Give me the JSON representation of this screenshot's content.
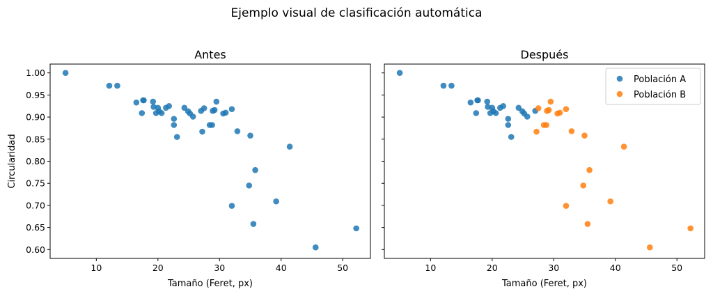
{
  "suptitle": "Ejemplo visual de clasificación automática",
  "colors": {
    "A": "#1f77b4",
    "B": "#ff7f0e"
  },
  "chart_data": [
    {
      "type": "scatter",
      "title": "Antes",
      "xlabel": "Tamaño (Feret, px)",
      "ylabel": "Circularidad",
      "xlim": [
        2.5,
        54.5
      ],
      "ylim": [
        0.58,
        1.02
      ],
      "xticks": [
        10,
        20,
        30,
        40,
        50
      ],
      "yticks": [
        "0.60",
        "0.65",
        "0.70",
        "0.75",
        "0.80",
        "0.85",
        "0.90",
        "0.95",
        "1.00"
      ],
      "grid": false,
      "legend": "none",
      "series": [
        {
          "color": "#1f77b4",
          "points": [
            [
              5.0,
              1.0
            ],
            [
              12.1,
              0.971
            ],
            [
              13.4,
              0.971
            ],
            [
              16.5,
              0.933
            ],
            [
              17.4,
              0.909
            ],
            [
              17.6,
              0.938
            ],
            [
              17.7,
              0.938
            ],
            [
              19.2,
              0.935
            ],
            [
              19.3,
              0.923
            ],
            [
              19.7,
              0.909
            ],
            [
              20.0,
              0.921
            ],
            [
              20.2,
              0.913
            ],
            [
              20.6,
              0.909
            ],
            [
              21.3,
              0.921
            ],
            [
              21.8,
              0.925
            ],
            [
              22.6,
              0.896
            ],
            [
              22.6,
              0.882
            ],
            [
              23.1,
              0.855
            ],
            [
              24.3,
              0.921
            ],
            [
              24.9,
              0.913
            ],
            [
              25.2,
              0.908
            ],
            [
              25.7,
              0.901
            ],
            [
              27.0,
              0.914
            ],
            [
              27.2,
              0.867
            ],
            [
              27.5,
              0.92
            ],
            [
              28.4,
              0.882
            ],
            [
              28.8,
              0.882
            ],
            [
              28.9,
              0.914
            ],
            [
              29.2,
              0.916
            ],
            [
              29.5,
              0.935
            ],
            [
              30.6,
              0.908
            ],
            [
              31.0,
              0.91
            ],
            [
              32.0,
              0.918
            ],
            [
              32.9,
              0.868
            ],
            [
              35.0,
              0.858
            ],
            [
              41.4,
              0.833
            ],
            [
              35.8,
              0.78
            ],
            [
              34.8,
              0.745
            ],
            [
              39.2,
              0.709
            ],
            [
              32.0,
              0.699
            ],
            [
              35.5,
              0.658
            ],
            [
              45.6,
              0.605
            ],
            [
              52.2,
              0.648
            ]
          ]
        }
      ]
    },
    {
      "type": "scatter",
      "title": "Después",
      "xlabel": "Tamaño (Feret, px)",
      "ylabel": "",
      "xlim": [
        2.5,
        54.5
      ],
      "ylim": [
        0.58,
        1.02
      ],
      "xticks": [
        10,
        20,
        30,
        40,
        50
      ],
      "yticks": [],
      "grid": false,
      "legend": "top-right",
      "series": [
        {
          "name": "Población A",
          "color": "#1f77b4",
          "points": [
            [
              5.0,
              1.0
            ],
            [
              12.1,
              0.971
            ],
            [
              13.4,
              0.971
            ],
            [
              16.5,
              0.933
            ],
            [
              17.4,
              0.909
            ],
            [
              17.6,
              0.938
            ],
            [
              17.7,
              0.938
            ],
            [
              19.2,
              0.935
            ],
            [
              19.3,
              0.923
            ],
            [
              19.7,
              0.909
            ],
            [
              20.0,
              0.921
            ],
            [
              20.2,
              0.913
            ],
            [
              20.6,
              0.909
            ],
            [
              21.3,
              0.921
            ],
            [
              21.8,
              0.925
            ],
            [
              22.6,
              0.896
            ],
            [
              22.6,
              0.882
            ],
            [
              23.1,
              0.855
            ],
            [
              24.3,
              0.921
            ],
            [
              24.9,
              0.913
            ],
            [
              25.2,
              0.908
            ],
            [
              25.7,
              0.901
            ],
            [
              27.0,
              0.914
            ]
          ]
        },
        {
          "name": "Población B",
          "color": "#ff7f0e",
          "points": [
            [
              27.2,
              0.867
            ],
            [
              27.5,
              0.92
            ],
            [
              28.4,
              0.882
            ],
            [
              28.8,
              0.882
            ],
            [
              28.9,
              0.914
            ],
            [
              29.2,
              0.916
            ],
            [
              29.5,
              0.935
            ],
            [
              30.6,
              0.908
            ],
            [
              31.0,
              0.91
            ],
            [
              32.0,
              0.918
            ],
            [
              32.9,
              0.868
            ],
            [
              35.0,
              0.858
            ],
            [
              41.4,
              0.833
            ],
            [
              35.8,
              0.78
            ],
            [
              34.8,
              0.745
            ],
            [
              39.2,
              0.709
            ],
            [
              32.0,
              0.699
            ],
            [
              35.5,
              0.658
            ],
            [
              45.6,
              0.605
            ],
            [
              52.2,
              0.648
            ]
          ]
        }
      ]
    }
  ]
}
